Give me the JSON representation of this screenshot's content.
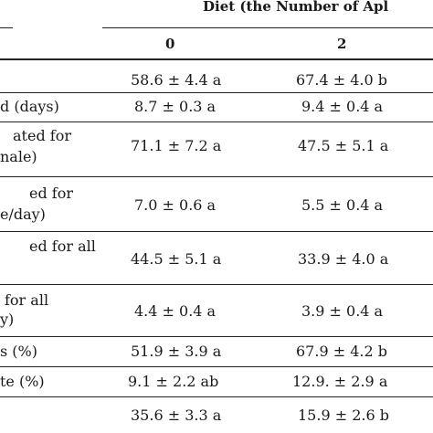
{
  "header": {
    "diet_title": "Diet (the Number of Apl",
    "columns": [
      "0",
      "2"
    ]
  },
  "rows": [
    {
      "label": [
        ""
      ],
      "values": [
        "58.6 ± 4.4 a",
        "67.4 ± 4.0 b"
      ]
    },
    {
      "label": [
        "d (days)"
      ],
      "values": [
        "8.7 ± 0.3 a",
        "9.4 ± 0.4 a"
      ]
    },
    {
      "label": [
        "ated for",
        "nale)"
      ],
      "values": [
        "71.1 ± 7.2 a",
        "47.5 ± 5.1 a"
      ]
    },
    {
      "label": [
        "ed for",
        "e/day)"
      ],
      "values": [
        "7.0 ± 0.6 a",
        "5.5 ± 0.4 a"
      ]
    },
    {
      "label": [
        "ed for all",
        ""
      ],
      "values": [
        "44.5 ± 5.1 a",
        "33.9 ± 4.0 a"
      ]
    },
    {
      "label": [
        "for all",
        "y)"
      ],
      "values": [
        "4.4 ± 0.4 a",
        "3.9 ± 0.4 a"
      ]
    },
    {
      "label": [
        "s (%)"
      ],
      "values": [
        "51.9 ± 3.9 a",
        "67.9 ± 4.2 b"
      ]
    },
    {
      "label": [
        "te (%)"
      ],
      "values": [
        "9.1 ± 2.2 ab",
        "12.9. ± 2.9 a"
      ]
    },
    {
      "label": [
        ""
      ],
      "values": [
        "35.6 ± 3.3 a",
        "15.9 ± 2.6 b"
      ]
    }
  ]
}
